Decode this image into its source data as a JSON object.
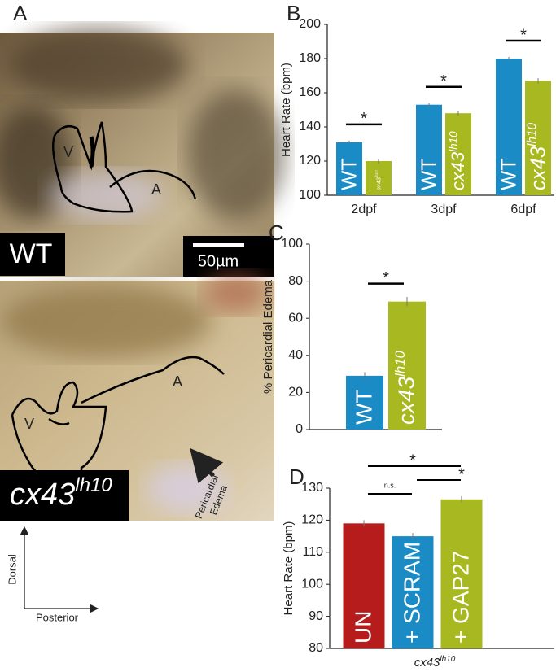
{
  "panel_a": {
    "label": "A",
    "top_label": "WT",
    "scale_bar": "50µm",
    "top_chambers": [
      "V",
      "A"
    ],
    "bottom_label": "cx43",
    "bottom_label_sup": "lh10",
    "bottom_chambers": [
      "A",
      "V"
    ],
    "edema_label": [
      "Pericardial",
      "Edema"
    ],
    "orientation": [
      "Dorsal",
      "Posterior"
    ]
  },
  "chart_data": [
    {
      "type": "bar",
      "panel": "B",
      "ylabel": "Heart Rate (bpm)",
      "categories": [
        "2dpf",
        "3dpf",
        "6dpf"
      ],
      "series": [
        {
          "name": "WT",
          "color": "#1a8bc4",
          "values": [
            131,
            153,
            180
          ],
          "errors": [
            1,
            1,
            1
          ]
        },
        {
          "name": "cx43",
          "superscript": "lh10",
          "color": "#a8b820",
          "values": [
            120,
            148,
            167
          ],
          "errors": [
            1.5,
            1.5,
            1.5
          ]
        }
      ],
      "annotations": [
        "*",
        "*",
        "*"
      ],
      "ylim": [
        100,
        200
      ],
      "yticks": [
        100,
        120,
        140,
        160,
        180,
        200
      ]
    },
    {
      "type": "bar",
      "panel": "C",
      "ylabel": "% Pericardial Edema",
      "series": [
        {
          "name": "WT",
          "color": "#1a8bc4",
          "values": [
            29
          ],
          "errors": [
            2
          ]
        },
        {
          "name": "cx43",
          "superscript": "lh10",
          "color": "#a8b820",
          "values": [
            69
          ],
          "errors": [
            2.5
          ]
        }
      ],
      "annotations": [
        "*"
      ],
      "ylim": [
        0,
        100
      ],
      "yticks": [
        0,
        20,
        40,
        60,
        80,
        100
      ]
    },
    {
      "type": "bar",
      "panel": "D",
      "ylabel": "Heart Rate (bpm)",
      "xlabel": "cx43",
      "xlabel_sup": "lh10",
      "categories": [
        "UN",
        "+ SCRAM",
        "+ GAP27"
      ],
      "values": [
        119,
        115,
        126.5
      ],
      "errors": [
        1,
        1,
        1
      ],
      "colors": [
        "#b71c1c",
        "#1a8bc4",
        "#a8b820"
      ],
      "annotations": [
        "*",
        "n.s.",
        "*"
      ],
      "ylim": [
        80,
        130
      ],
      "yticks": [
        80,
        90,
        100,
        110,
        120,
        130
      ]
    }
  ]
}
